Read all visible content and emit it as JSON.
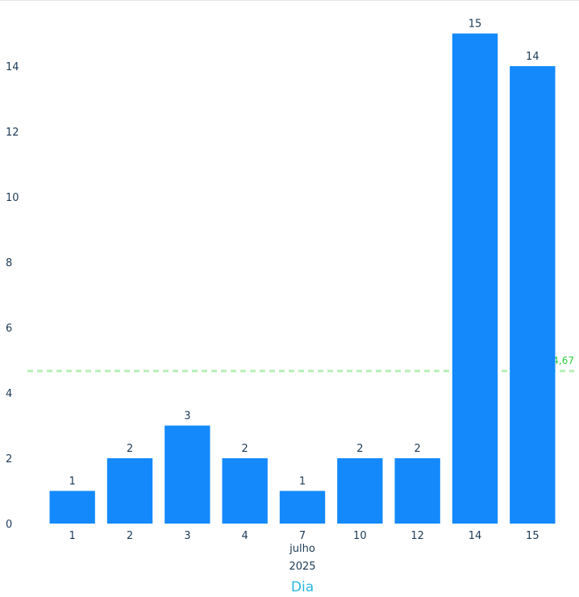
{
  "chart_data": {
    "type": "bar",
    "categories": [
      "1",
      "2",
      "3",
      "4",
      "7",
      "10",
      "12",
      "14",
      "15"
    ],
    "values": [
      1,
      2,
      3,
      2,
      1,
      2,
      2,
      15,
      14
    ],
    "ylim": [
      0,
      15
    ],
    "yticks": [
      "0",
      "2",
      "4",
      "6",
      "8",
      "10",
      "12",
      "14"
    ],
    "xlabel": "Dia",
    "x_group_labels": {
      "month": "julho",
      "year": "2025"
    },
    "reference_line": {
      "value": 4.67,
      "label": "4,67",
      "style": "dashed",
      "color": "#b6efb6",
      "label_color": "#2ecc40"
    },
    "bar_color": "#1389fc",
    "xlabel_color": "#2ab7e0",
    "grid": false
  }
}
